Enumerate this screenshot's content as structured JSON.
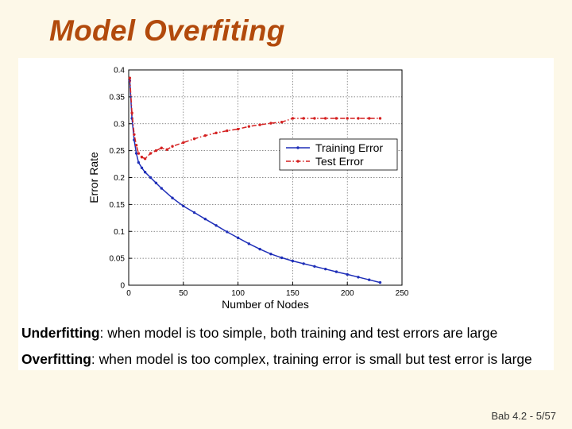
{
  "slide": {
    "title": "Model Overfiting",
    "page_label": "Bab 4.2 - 5/57"
  },
  "captions": [
    {
      "term": "Underfitting",
      "text": ": when model is too simple, both training and test errors are large"
    },
    {
      "term": "Overfitting",
      "text": ": when model is too complex, training error is small but test error is large"
    }
  ],
  "colors": {
    "title": "#b24a0c",
    "background": "#fdf8e8",
    "training": "#1f2fb8",
    "test": "#d42020"
  },
  "chart_data": {
    "type": "line",
    "title": "",
    "xlabel": "Number of Nodes",
    "ylabel": "Error Rate",
    "xlim": [
      0,
      250
    ],
    "ylim": [
      0,
      0.4
    ],
    "x_ticks": [
      0,
      50,
      100,
      150,
      200,
      250
    ],
    "x_tick_labels": [
      "0",
      "50",
      "100",
      "150",
      "200",
      "250"
    ],
    "y_ticks": [
      0,
      0.05,
      0.1,
      0.15,
      0.2,
      0.25,
      0.3,
      0.35,
      0.4
    ],
    "y_tick_labels": [
      "0",
      "0.05",
      "0.1",
      "0.15",
      "0.2",
      "0.25",
      "0.3",
      "0.35",
      "0.4"
    ],
    "grid": true,
    "legend_position": "upper-right",
    "series": [
      {
        "name": "Training Error",
        "color": "#1f2fb8",
        "style": "solid",
        "x": [
          1,
          3,
          5,
          7,
          9,
          12,
          15,
          20,
          25,
          30,
          40,
          50,
          60,
          70,
          80,
          90,
          100,
          110,
          120,
          130,
          140,
          150,
          160,
          170,
          180,
          190,
          200,
          210,
          220,
          230
        ],
        "y": [
          0.38,
          0.31,
          0.27,
          0.245,
          0.228,
          0.218,
          0.21,
          0.2,
          0.19,
          0.18,
          0.162,
          0.147,
          0.135,
          0.123,
          0.111,
          0.099,
          0.088,
          0.077,
          0.067,
          0.058,
          0.051,
          0.045,
          0.04,
          0.035,
          0.03,
          0.025,
          0.02,
          0.015,
          0.01,
          0.005
        ]
      },
      {
        "name": "Test Error",
        "color": "#d42020",
        "style": "dashdot",
        "x": [
          1,
          3,
          5,
          7,
          9,
          12,
          15,
          20,
          25,
          30,
          35,
          40,
          50,
          60,
          70,
          80,
          90,
          100,
          110,
          120,
          130,
          140,
          150,
          160,
          170,
          180,
          190,
          200,
          210,
          220,
          230
        ],
        "y": [
          0.385,
          0.32,
          0.28,
          0.26,
          0.245,
          0.238,
          0.235,
          0.245,
          0.25,
          0.255,
          0.252,
          0.258,
          0.265,
          0.272,
          0.278,
          0.283,
          0.287,
          0.29,
          0.295,
          0.298,
          0.301,
          0.303,
          0.31,
          0.31,
          0.31,
          0.31,
          0.31,
          0.31,
          0.31,
          0.31,
          0.31
        ]
      }
    ]
  }
}
